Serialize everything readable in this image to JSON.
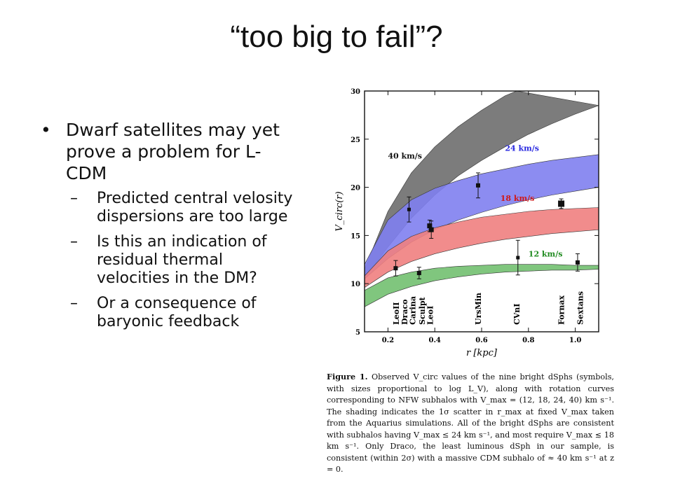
{
  "slide": {
    "title": "“too big to fail”?",
    "bullet_main": "Dwarf satellites may yet prove a problem for L-CDM",
    "sub_bullets": [
      "Predicted central velosity dispersions are too large",
      "Is this an indication of residual thermal velocities in the DM?",
      "Or a consequence of baryonic feedback"
    ],
    "bullet_symbol": "•",
    "dash_symbol": "–"
  },
  "caption": {
    "label": "Figure 1.",
    "text": "Observed V_circ values of the nine bright dSphs (symbols, with sizes proportional to log L_V), along with rotation curves corresponding to NFW subhalos with V_max = (12, 18, 24, 40) km s⁻¹. The shading indicates the 1σ scatter in r_max at fixed V_max taken from the Aquarius simulations. All of the bright dSphs are consistent with subhalos having V_max ≤ 24 km s⁻¹, and most require V_max ≲ 18 km s⁻¹. Only Draco, the least luminous dSph in our sample, is consistent (within 2σ) with a massive CDM subhalo of ≈ 40 km s⁻¹ at z = 0."
  },
  "chart_data": {
    "type": "scatter",
    "xlabel": "r [kpc]",
    "ylabel": "V_circ(r)",
    "xlim": [
      0.1,
      1.1
    ],
    "ylim": [
      5,
      30
    ],
    "x_ticks": [
      0.2,
      0.4,
      0.6,
      0.8,
      1.0
    ],
    "x_tick_labels": [
      "0.2",
      "0.4",
      "0.6",
      "0.8",
      "1.0"
    ],
    "y_ticks": [
      5,
      10,
      15,
      20,
      25,
      30
    ],
    "y_tick_labels": [
      "5",
      "10",
      "15",
      "20",
      "25",
      "30"
    ],
    "bands": [
      {
        "name": "40 km/s",
        "color": "#6e6e6e",
        "upper": [
          [
            0.1,
            11.5
          ],
          [
            0.2,
            17.5
          ],
          [
            0.3,
            21.5
          ],
          [
            0.4,
            24.2
          ],
          [
            0.5,
            26.3
          ],
          [
            0.6,
            28.0
          ],
          [
            0.7,
            29.5
          ],
          [
            0.75,
            30.0
          ]
        ],
        "lower": [
          [
            0.1,
            10.5
          ],
          [
            0.2,
            13.8
          ],
          [
            0.3,
            16.8
          ],
          [
            0.4,
            19.2
          ],
          [
            0.5,
            21.2
          ],
          [
            0.6,
            22.8
          ],
          [
            0.7,
            24.2
          ],
          [
            0.8,
            25.5
          ],
          [
            0.9,
            26.6
          ],
          [
            1.0,
            27.6
          ],
          [
            1.1,
            28.5
          ]
        ]
      },
      {
        "name": "24 km/s",
        "color": "#7f7ff0",
        "upper": [
          [
            0.1,
            12.0
          ],
          [
            0.2,
            16.6
          ],
          [
            0.3,
            18.7
          ],
          [
            0.4,
            19.9
          ],
          [
            0.5,
            20.7
          ],
          [
            0.6,
            21.4
          ],
          [
            0.7,
            21.9
          ],
          [
            0.8,
            22.4
          ],
          [
            0.9,
            22.8
          ],
          [
            1.0,
            23.1
          ],
          [
            1.1,
            23.4
          ]
        ],
        "lower": [
          [
            0.1,
            10.5
          ],
          [
            0.2,
            12.6
          ],
          [
            0.3,
            14.3
          ],
          [
            0.4,
            15.6
          ],
          [
            0.5,
            16.6
          ],
          [
            0.6,
            17.4
          ],
          [
            0.7,
            18.1
          ],
          [
            0.8,
            18.7
          ],
          [
            0.9,
            19.2
          ],
          [
            1.0,
            19.6
          ],
          [
            1.1,
            20.0
          ]
        ]
      },
      {
        "name": "18 km/s",
        "color": "#f07f80",
        "upper": [
          [
            0.1,
            10.8
          ],
          [
            0.2,
            13.4
          ],
          [
            0.3,
            14.9
          ],
          [
            0.4,
            15.8
          ],
          [
            0.5,
            16.4
          ],
          [
            0.6,
            16.9
          ],
          [
            0.7,
            17.2
          ],
          [
            0.8,
            17.5
          ],
          [
            0.9,
            17.7
          ],
          [
            1.0,
            17.8
          ],
          [
            1.1,
            17.9
          ]
        ],
        "lower": [
          [
            0.1,
            9.6
          ],
          [
            0.2,
            11.2
          ],
          [
            0.3,
            12.3
          ],
          [
            0.4,
            13.1
          ],
          [
            0.5,
            13.7
          ],
          [
            0.6,
            14.2
          ],
          [
            0.7,
            14.6
          ],
          [
            0.8,
            14.9
          ],
          [
            0.9,
            15.2
          ],
          [
            1.0,
            15.4
          ],
          [
            1.1,
            15.6
          ]
        ]
      },
      {
        "name": "12 km/s",
        "color": "#72c070",
        "upper": [
          [
            0.1,
            9.3
          ],
          [
            0.2,
            10.6
          ],
          [
            0.3,
            11.2
          ],
          [
            0.4,
            11.6
          ],
          [
            0.5,
            11.8
          ],
          [
            0.6,
            11.9
          ],
          [
            0.7,
            12.0
          ],
          [
            0.8,
            12.0
          ],
          [
            0.9,
            12.0
          ],
          [
            1.0,
            11.9
          ],
          [
            1.1,
            11.9
          ]
        ],
        "lower": [
          [
            0.1,
            7.6
          ],
          [
            0.2,
            8.9
          ],
          [
            0.3,
            9.7
          ],
          [
            0.4,
            10.3
          ],
          [
            0.5,
            10.7
          ],
          [
            0.6,
            11.0
          ],
          [
            0.7,
            11.2
          ],
          [
            0.8,
            11.3
          ],
          [
            0.9,
            11.4
          ],
          [
            1.0,
            11.4
          ],
          [
            1.1,
            11.5
          ]
        ]
      }
    ],
    "band_labels": [
      {
        "text": "40 km/s",
        "x": 0.2,
        "y": 23.0,
        "color": "#111111"
      },
      {
        "text": "24 km/s",
        "x": 0.7,
        "y": 23.8,
        "color": "#2a2ae0"
      },
      {
        "text": "18 km/s",
        "x": 0.68,
        "y": 18.6,
        "color": "#d01818"
      },
      {
        "text": "12 km/s",
        "x": 0.8,
        "y": 12.8,
        "color": "#1e8a1e"
      }
    ],
    "points": [
      {
        "name": "LeoII",
        "x": 0.233,
        "y": 11.6,
        "err": 0.8,
        "size": 3
      },
      {
        "name": "Draco",
        "x": 0.29,
        "y": 17.7,
        "err": 1.3,
        "size": 2
      },
      {
        "name": "Carina",
        "x": 0.333,
        "y": 11.1,
        "err": 0.6,
        "size": 3
      },
      {
        "name": "Sculpt",
        "x": 0.378,
        "y": 16.0,
        "err": 0.6,
        "size": 4
      },
      {
        "name": "LeoI",
        "x": 0.385,
        "y": 15.6,
        "err": 0.9,
        "size": 4
      },
      {
        "name": "UrsMin",
        "x": 0.585,
        "y": 20.2,
        "err": 1.3,
        "size": 3
      },
      {
        "name": "CVnI",
        "x": 0.755,
        "y": 12.7,
        "err": 1.8,
        "size": 2
      },
      {
        "name": "Fornax",
        "x": 0.94,
        "y": 18.3,
        "err": 0.5,
        "size": 6
      },
      {
        "name": "Sextans",
        "x": 1.01,
        "y": 12.2,
        "err": 0.9,
        "size": 3
      }
    ],
    "galaxy_labels": [
      {
        "text": "LeoII",
        "x": 0.235
      },
      {
        "text": "Draco",
        "x": 0.27
      },
      {
        "text": "Carina",
        "x": 0.305
      },
      {
        "text": "Sculpt",
        "x": 0.345
      },
      {
        "text": "LeoI",
        "x": 0.38
      },
      {
        "text": "UrsMin",
        "x": 0.585
      },
      {
        "text": "CVnI",
        "x": 0.75
      },
      {
        "text": "Fornax",
        "x": 0.94
      },
      {
        "text": "Sextans",
        "x": 1.02
      }
    ]
  }
}
